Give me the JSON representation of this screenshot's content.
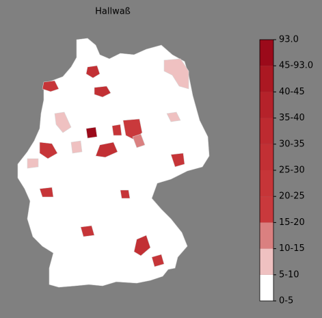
{
  "title": "Hallwaß",
  "colorbar": {
    "labels": [
      "0-5",
      "5-10",
      "10-15",
      "15-20",
      "20-25",
      "25-30",
      "30-35",
      "35-40",
      "40-45",
      "45-93.0",
      "93.0"
    ],
    "colors": [
      "#ffffff",
      "#efc1c1",
      "#da8080",
      "#c9393c",
      "#c63538",
      "#c23034",
      "#bd2a30",
      "#b5222a",
      "#ab1822",
      "#9b0a1a"
    ]
  }
}
